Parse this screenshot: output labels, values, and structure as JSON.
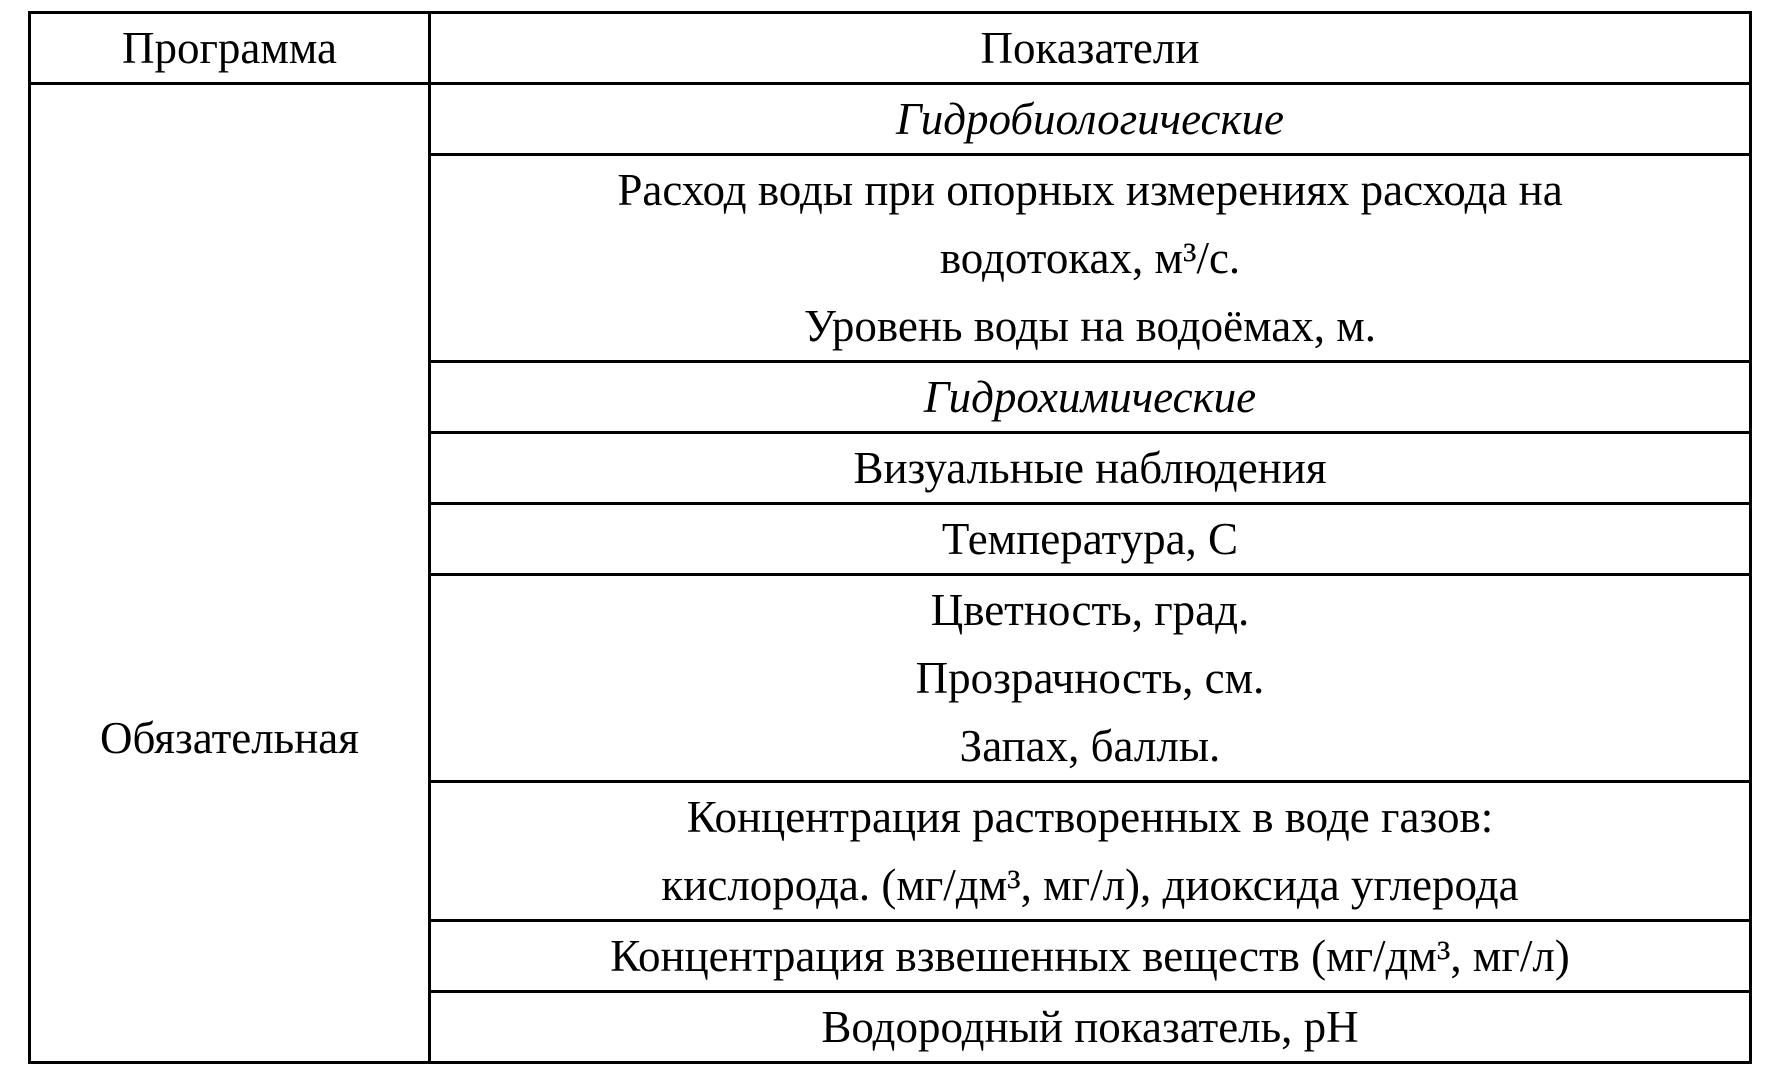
{
  "table": {
    "headers": [
      "Программа",
      "Показатели"
    ],
    "program": "Обязательная",
    "rows": [
      {
        "lines": [
          "Гидробиологические"
        ],
        "italic": true
      },
      {
        "lines": [
          "Расход воды при опорных измерениях расхода на",
          "водотоках, м³/с.",
          "Уровень воды на водоёмах, м."
        ]
      },
      {
        "lines": [
          "Гидрохимические"
        ],
        "italic": true
      },
      {
        "lines": [
          "Визуальные наблюдения"
        ]
      },
      {
        "lines": [
          "Температура, С"
        ]
      },
      {
        "lines": [
          "Цветность, град.",
          "Прозрачность, см.",
          "Запах, баллы."
        ]
      },
      {
        "lines": [
          "Концентрация растворенных в воде газов:",
          "кислорода. (мг/дм³, мг/л), диоксида углерода"
        ]
      },
      {
        "lines": [
          "Концентрация взвешенных веществ (мг/дм³, мг/л)"
        ]
      },
      {
        "lines": [
          "Водородный показатель, pH"
        ]
      }
    ]
  }
}
